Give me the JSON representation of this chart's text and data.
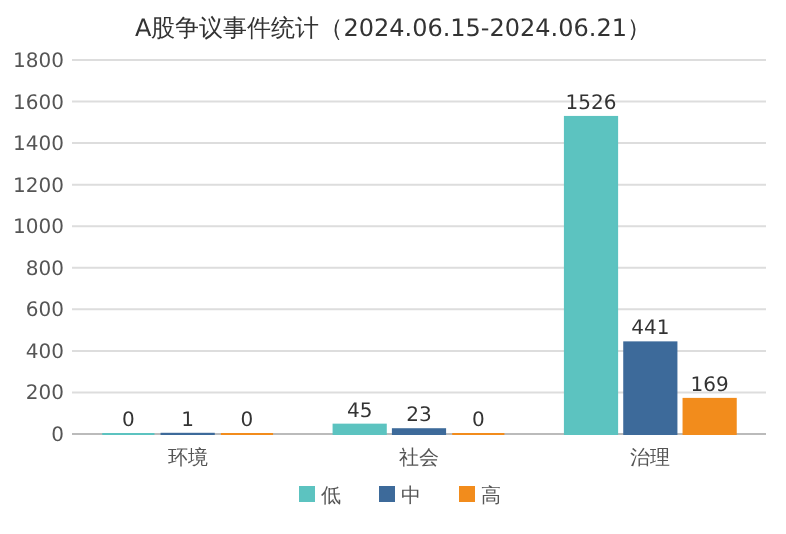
{
  "chart_data": {
    "type": "bar",
    "title": "A股争议事件统计（2024.06.15-2024.06.21）",
    "categories": [
      "环境",
      "社会",
      "治理"
    ],
    "series": [
      {
        "name": "低",
        "color": "#5cc3c0",
        "values": [
          0,
          45,
          1526
        ]
      },
      {
        "name": "中",
        "color": "#3d6a9a",
        "values": [
          1,
          23,
          441
        ]
      },
      {
        "name": "高",
        "color": "#f28c1c",
        "values": [
          0,
          0,
          169
        ]
      }
    ],
    "ylim": [
      0,
      1800
    ],
    "yticks": [
      0,
      200,
      400,
      600,
      800,
      1000,
      1200,
      1400,
      1600,
      1800
    ],
    "grid": "y",
    "legend": "bottom",
    "data_labels": true
  }
}
